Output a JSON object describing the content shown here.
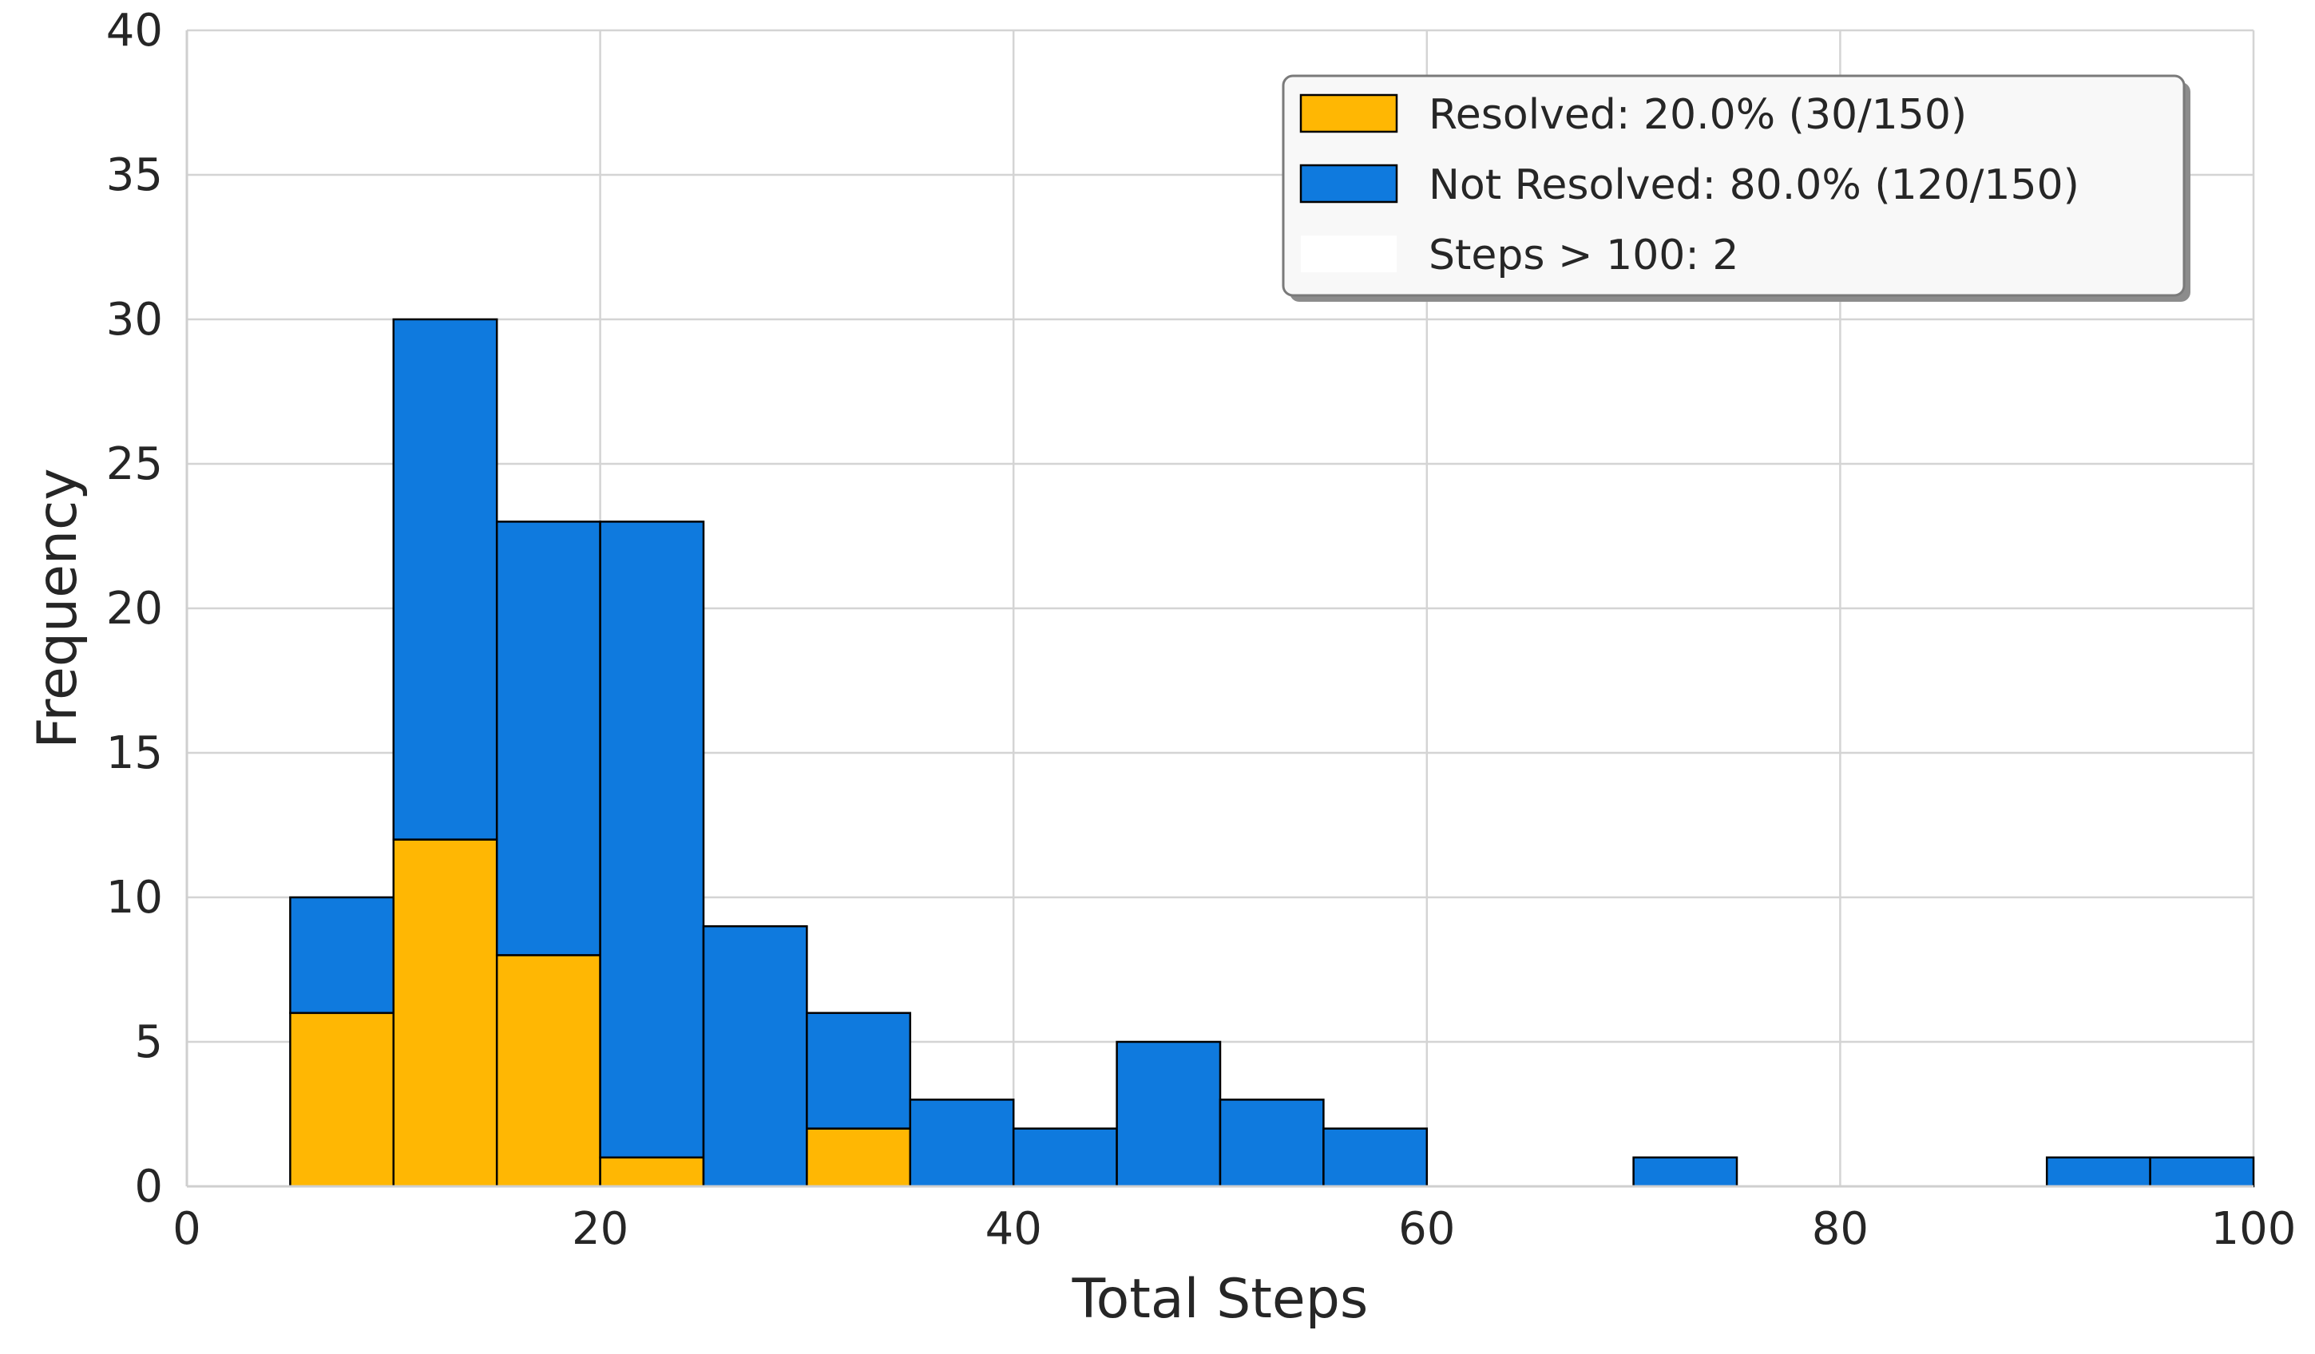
{
  "chart_data": {
    "type": "bar",
    "stacked": true,
    "xlabel": "Total Steps",
    "ylabel": "Frequency",
    "xlim": [
      0,
      100
    ],
    "ylim": [
      0,
      40
    ],
    "x_ticks": [
      0,
      20,
      40,
      60,
      80,
      100
    ],
    "y_ticks": [
      0,
      5,
      10,
      15,
      20,
      25,
      30,
      35,
      40
    ],
    "grid": true,
    "legend_position": "top-right",
    "bins": [
      [
        5,
        10
      ],
      [
        10,
        15
      ],
      [
        15,
        20
      ],
      [
        20,
        25
      ],
      [
        25,
        30
      ],
      [
        30,
        35
      ],
      [
        35,
        40
      ],
      [
        40,
        45
      ],
      [
        45,
        50
      ],
      [
        50,
        55
      ],
      [
        55,
        60
      ],
      [
        60,
        65
      ],
      [
        65,
        70
      ],
      [
        70,
        75
      ],
      [
        75,
        80
      ],
      [
        80,
        85
      ],
      [
        85,
        90
      ],
      [
        90,
        95
      ],
      [
        95,
        100
      ]
    ],
    "series": [
      {
        "name": "Resolved: 20.0% (30/150)",
        "color": "#FFB703",
        "values": [
          6,
          12,
          8,
          1,
          0,
          2,
          0,
          0,
          0,
          0,
          0,
          0,
          0,
          0,
          0,
          0,
          0,
          0,
          0
        ]
      },
      {
        "name": "Not Resolved: 80.0% (120/150)",
        "color": "#0F7ADE",
        "values": [
          4,
          18,
          15,
          22,
          9,
          4,
          3,
          2,
          5,
          3,
          2,
          0,
          0,
          1,
          0,
          0,
          0,
          1,
          1
        ]
      }
    ],
    "legend": [
      {
        "label": "Resolved: 20.0% (30/150)",
        "color": "#FFB703"
      },
      {
        "label": "Not Resolved: 80.0% (120/150)",
        "color": "#0F7ADE"
      },
      {
        "label": "Steps > 100: 2",
        "color": "#FFFFFF"
      }
    ]
  }
}
